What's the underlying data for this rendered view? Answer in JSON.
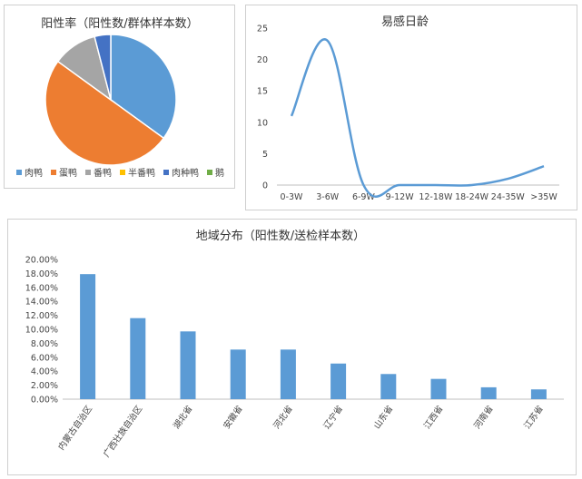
{
  "chart_data": [
    {
      "type": "pie",
      "title": "阳性率（阳性数/群体样本数）",
      "categories": [
        "肉鸭",
        "蛋鸭",
        "番鸭",
        "半番鸭",
        "肉种鸭",
        "鹅"
      ],
      "values": [
        35,
        50,
        11,
        0,
        4,
        0
      ],
      "colors": [
        "#5B9BD5",
        "#ED7D31",
        "#A5A5A5",
        "#FFC000",
        "#4472C4",
        "#70AD47"
      ],
      "legend": "bottom"
    },
    {
      "type": "line",
      "title": "易感日龄",
      "categories": [
        "0-3W",
        "3-6W",
        "6-9W",
        "9-12W",
        "12-18W",
        "18-24W",
        "24-35W",
        ">35W"
      ],
      "values": [
        11,
        23,
        0,
        0,
        0,
        0,
        1,
        3
      ],
      "ylim": [
        0,
        25
      ],
      "yticks": [
        "0",
        "5",
        "10",
        "15",
        "20",
        "25"
      ],
      "color": "#5B9BD5",
      "smooth": true
    },
    {
      "type": "bar",
      "title": "地域分布（阳性数/送检样本数）",
      "categories": [
        "内蒙古自治区",
        "广西壮族自治区",
        "湖北省",
        "安徽省",
        "河北省",
        "辽宁省",
        "山东省",
        "江西省",
        "河南省",
        "江苏省"
      ],
      "values": [
        17.9,
        11.6,
        9.7,
        7.1,
        7.1,
        5.1,
        3.6,
        2.9,
        1.7,
        1.4
      ],
      "ylim": [
        0,
        20
      ],
      "yticks": [
        "0.00%",
        "2.00%",
        "4.00%",
        "6.00%",
        "8.00%",
        "10.00%",
        "12.00%",
        "14.00%",
        "16.00%",
        "18.00%",
        "20.00%"
      ],
      "color": "#5B9BD5"
    }
  ]
}
